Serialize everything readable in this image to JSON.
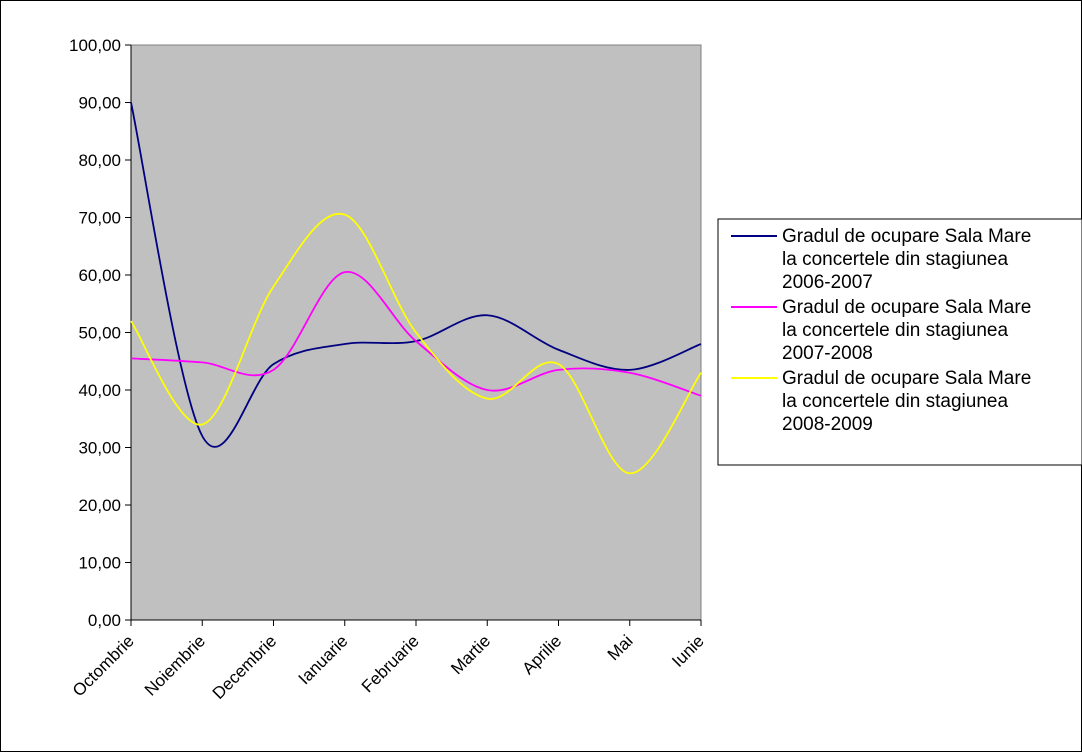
{
  "chart_data": {
    "type": "line",
    "title": "",
    "xlabel": "",
    "ylabel": "",
    "categories": [
      "Octombrie",
      "Noiembrie",
      "Decembrie",
      "Ianuarie",
      "Februarie",
      "Martie",
      "Aprilie",
      "Mai",
      "Iunie"
    ],
    "y_ticks": [
      "0,00",
      "10,00",
      "20,00",
      "30,00",
      "40,00",
      "50,00",
      "60,00",
      "70,00",
      "80,00",
      "90,00",
      "100,00"
    ],
    "ylim": [
      0,
      100
    ],
    "plot_background": "#c0c0c0",
    "grid": false,
    "legend_position": "right",
    "series": [
      {
        "name_lines": [
          "Gradul de ocupare Sala Mare",
          "la concertele din stagiunea",
          "2006-2007"
        ],
        "color": "#000080",
        "values": [
          90.0,
          32.0,
          44.5,
          48.0,
          48.5,
          53.0,
          47.0,
          43.5,
          48.0
        ]
      },
      {
        "name_lines": [
          "Gradul de ocupare Sala Mare",
          "la concertele din stagiunea",
          "2007-2008"
        ],
        "color": "#ff00ff",
        "values": [
          45.5,
          44.8,
          43.5,
          60.5,
          48.5,
          40.0,
          43.5,
          43.0,
          39.0
        ]
      },
      {
        "name_lines": [
          "Gradul de ocupare Sala Mare",
          "la concertele din stagiunea",
          "2008-2009"
        ],
        "color": "#ffff00",
        "values": [
          52.0,
          34.0,
          58.0,
          70.5,
          50.0,
          38.5,
          44.5,
          25.5,
          43.0
        ]
      }
    ]
  }
}
